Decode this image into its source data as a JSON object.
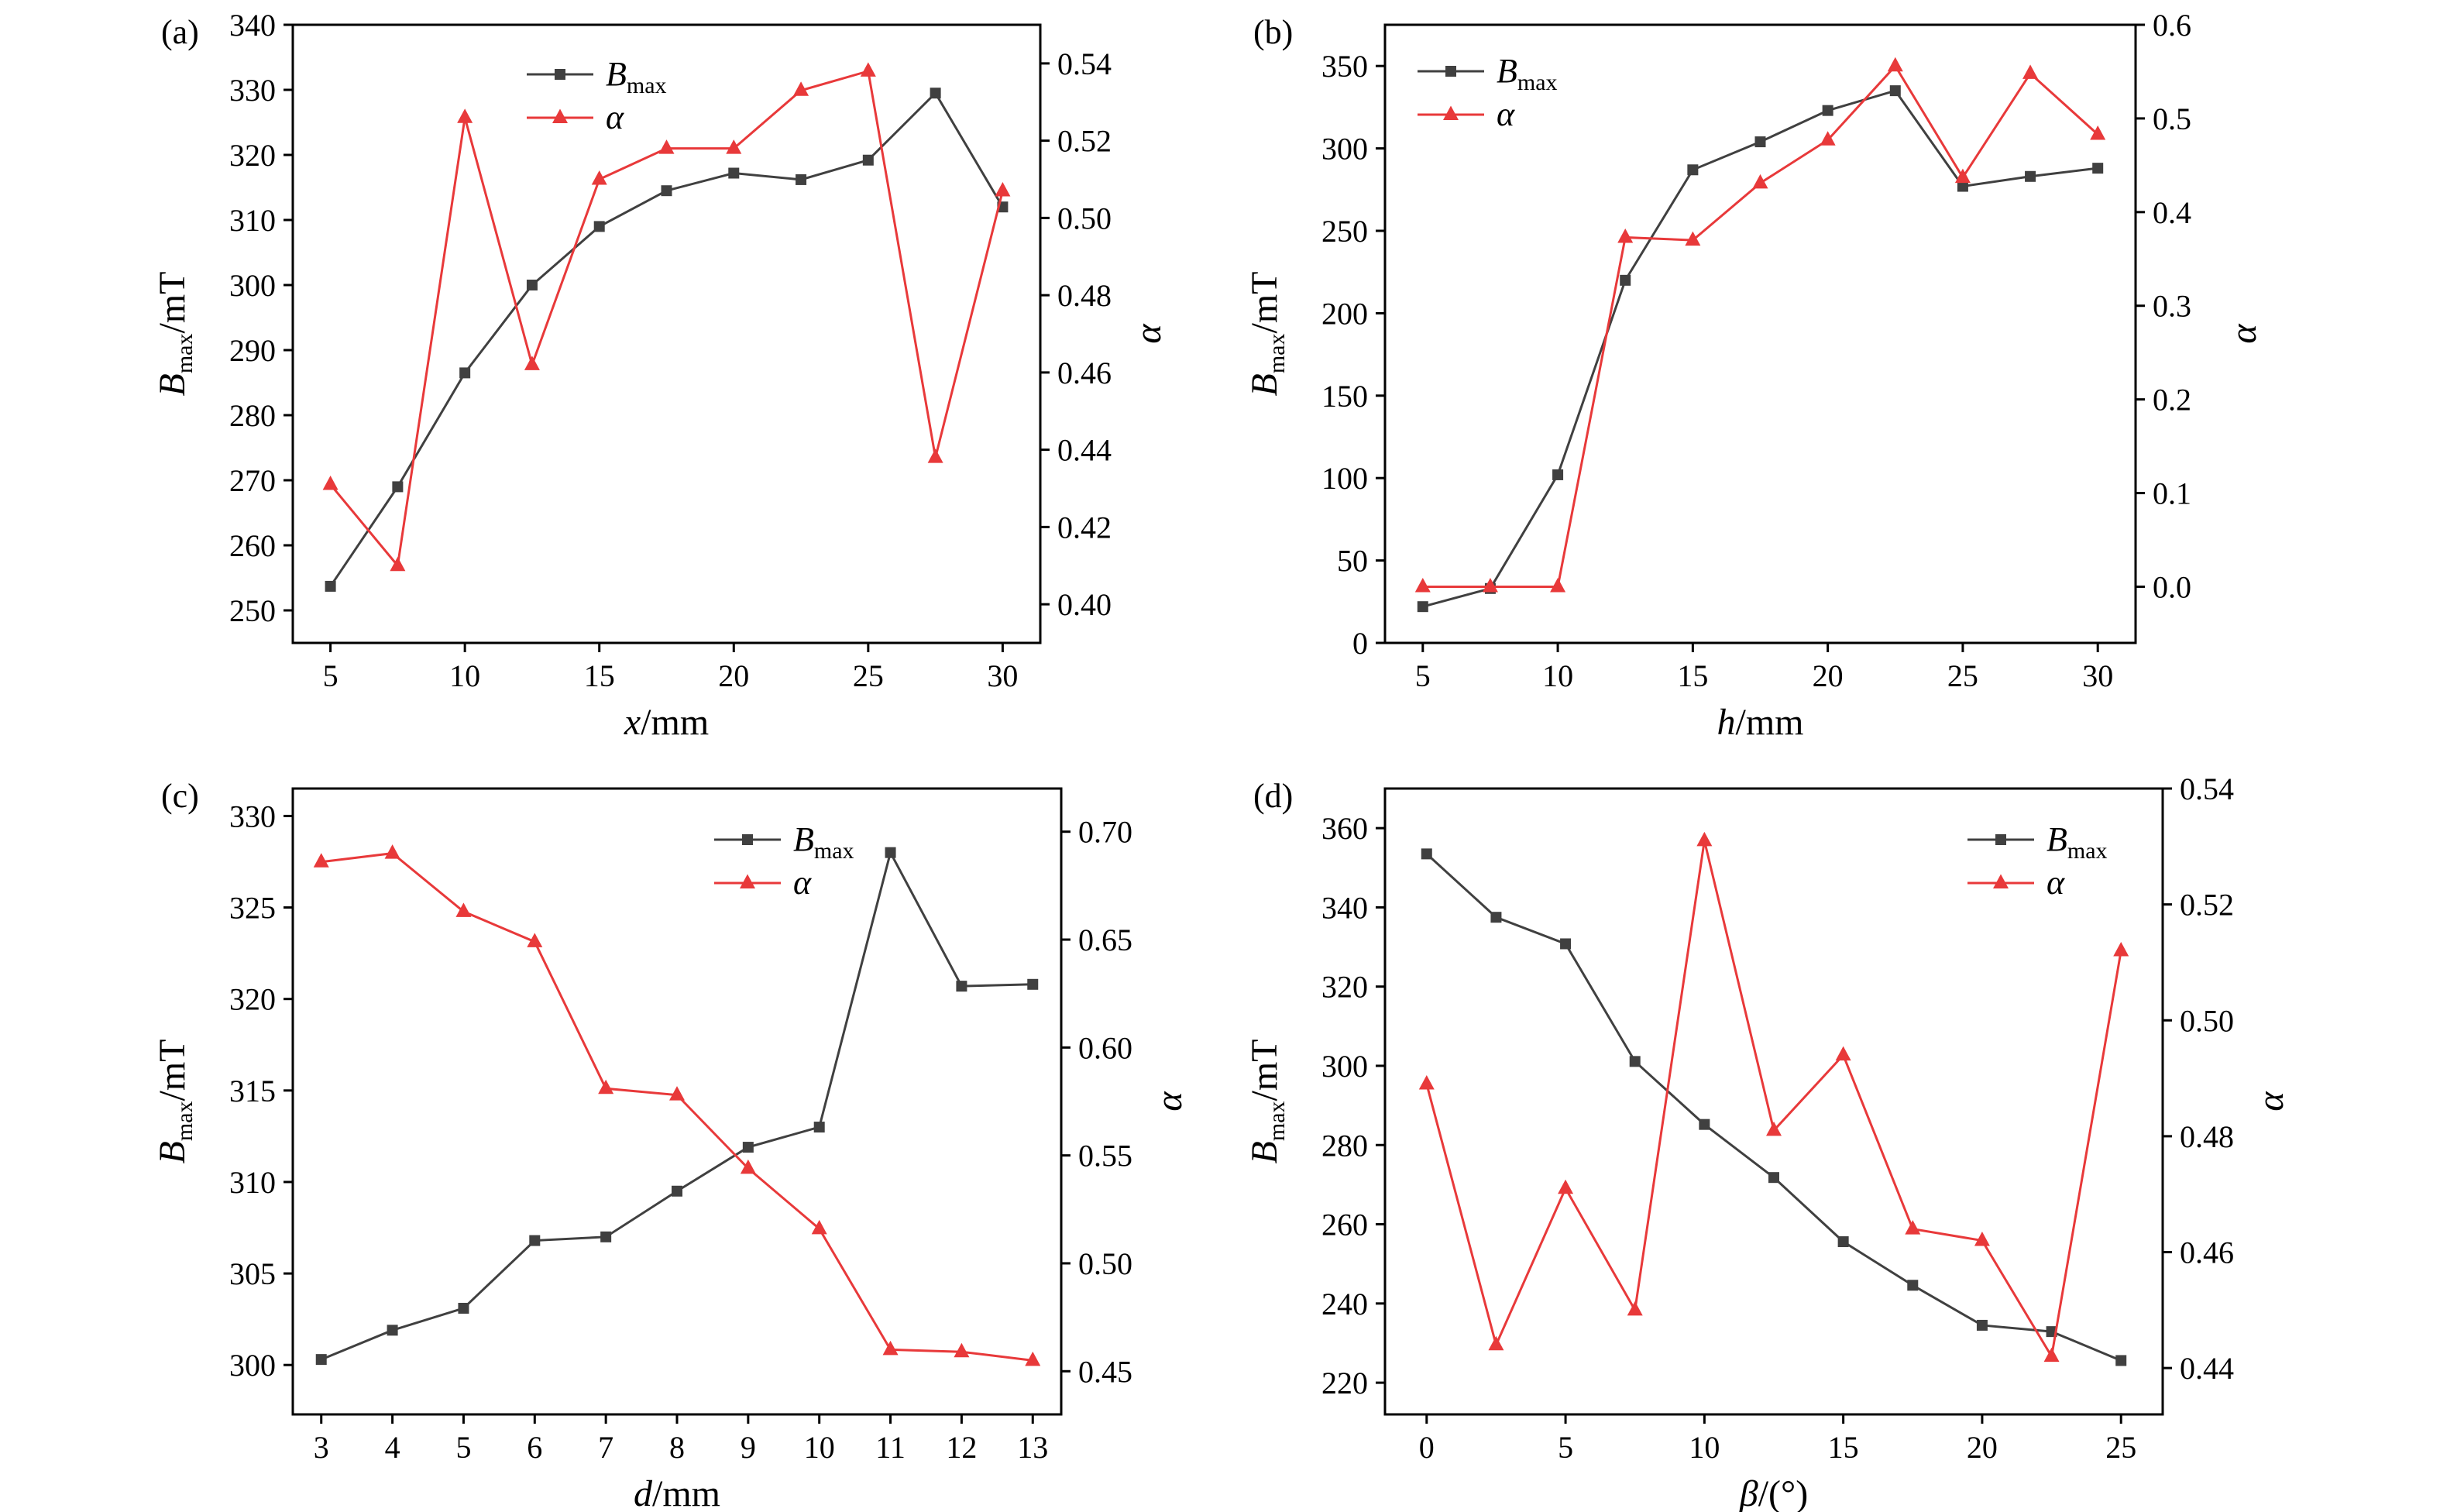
{
  "colors": {
    "bmax": "#404040",
    "alpha": "#e8393a",
    "axis": "#000000"
  },
  "chart_data": [
    {
      "type": "line",
      "panel_label": "(a)",
      "xlabel": {
        "var": "x",
        "unit": "/mm"
      },
      "ylabel_left": {
        "var": "B",
        "sub": "max",
        "unit": "/mT"
      },
      "ylabel_right": {
        "var": "α"
      },
      "xlim": [
        3.6,
        31.4
      ],
      "ylim_left": [
        245,
        340
      ],
      "ylim_right": [
        0.39,
        0.55
      ],
      "xticks": [
        5,
        10,
        15,
        20,
        25,
        30
      ],
      "yticks_left": [
        250,
        260,
        270,
        280,
        290,
        300,
        310,
        320,
        330,
        340
      ],
      "yticks_right": [
        0.4,
        0.42,
        0.44,
        0.46,
        0.48,
        0.5,
        0.52,
        0.54
      ],
      "right_decimals": 2,
      "legend": {
        "position": "top-center",
        "entries": [
          {
            "var": "B",
            "sub": "max"
          },
          {
            "var": "α"
          }
        ]
      },
      "x": [
        5,
        7.5,
        10,
        12.5,
        15,
        17.5,
        20,
        22.5,
        25,
        27.5,
        30
      ],
      "series": [
        {
          "name": "Bmax",
          "axis": "left",
          "marker": "square",
          "values": [
            253.7,
            269,
            286.5,
            300,
            309,
            314.5,
            317.2,
            316.2,
            319.2,
            329.5,
            312
          ]
        },
        {
          "name": "α",
          "axis": "right",
          "marker": "triangle",
          "values": [
            0.431,
            0.41,
            0.526,
            0.462,
            0.51,
            0.518,
            0.518,
            0.533,
            0.538,
            0.438,
            0.507
          ]
        }
      ]
    },
    {
      "type": "line",
      "panel_label": "(b)",
      "xlabel": {
        "var": "h",
        "unit": "/mm"
      },
      "ylabel_left": {
        "var": "B",
        "sub": "max",
        "unit": "/mT"
      },
      "ylabel_right": {
        "var": "α"
      },
      "xlim": [
        3.6,
        31.4
      ],
      "ylim_left": [
        0,
        375
      ],
      "ylim_right": [
        -0.06,
        0.6
      ],
      "xticks": [
        5,
        10,
        15,
        20,
        25,
        30
      ],
      "yticks_left": [
        0,
        50,
        100,
        150,
        200,
        250,
        300,
        350
      ],
      "yticks_right": [
        0,
        0.1,
        0.2,
        0.3,
        0.4,
        0.5,
        0.6
      ],
      "right_decimals": 1,
      "legend": {
        "position": "top-left",
        "entries": [
          {
            "var": "B",
            "sub": "max"
          },
          {
            "var": "α"
          }
        ]
      },
      "x": [
        5,
        7.5,
        10,
        12.5,
        15,
        17.5,
        20,
        22.5,
        25,
        27.5,
        30
      ],
      "series": [
        {
          "name": "Bmax",
          "axis": "left",
          "marker": "square",
          "values": [
            22,
            33,
            102,
            220,
            287,
            304,
            323,
            335,
            277,
            283,
            288
          ]
        },
        {
          "name": "α",
          "axis": "right",
          "marker": "triangle",
          "values": [
            0,
            0,
            0,
            0.373,
            0.37,
            0.431,
            0.477,
            0.556,
            0.437,
            0.548,
            0.483
          ]
        }
      ]
    },
    {
      "type": "line",
      "panel_label": "(c)",
      "xlabel": {
        "var": "d",
        "unit": "/mm"
      },
      "ylabel_left": {
        "var": "B",
        "sub": "max",
        "unit": "/mT"
      },
      "ylabel_right": {
        "var": "α"
      },
      "xlim": [
        2.6,
        13.4
      ],
      "ylim_left": [
        297.3,
        331.5
      ],
      "ylim_right": [
        0.43,
        0.72
      ],
      "xticks": [
        3,
        4,
        5,
        6,
        7,
        8,
        9,
        10,
        11,
        12,
        13
      ],
      "yticks_left": [
        300,
        305,
        310,
        315,
        320,
        325,
        330
      ],
      "yticks_right": [
        0.45,
        0.5,
        0.55,
        0.6,
        0.65,
        0.7
      ],
      "right_decimals": 2,
      "legend": {
        "position": "top-right",
        "entries": [
          {
            "var": "B",
            "sub": "max"
          },
          {
            "var": "α"
          }
        ]
      },
      "x": [
        3,
        4,
        5,
        6,
        7,
        8,
        9,
        10,
        11,
        12,
        13
      ],
      "series": [
        {
          "name": "Bmax",
          "axis": "left",
          "marker": "square",
          "values": [
            300.3,
            301.9,
            303.1,
            306.8,
            307,
            309.5,
            311.9,
            313,
            328,
            320.7,
            320.8
          ]
        },
        {
          "name": "α",
          "axis": "right",
          "marker": "triangle",
          "values": [
            0.686,
            0.69,
            0.663,
            0.649,
            0.581,
            0.578,
            0.544,
            0.516,
            0.46,
            0.459,
            0.455
          ]
        }
      ]
    },
    {
      "type": "line",
      "panel_label": "(d)",
      "xlabel": {
        "var": "β",
        "unit": "/(°)"
      },
      "ylabel_left": {
        "var": "B",
        "sub": "max",
        "unit": "/mT"
      },
      "ylabel_right": {
        "var": "α"
      },
      "xlim": [
        -1.5,
        26.5
      ],
      "ylim_left": [
        212,
        370
      ],
      "ylim_right": [
        0.432,
        0.54
      ],
      "xticks": [
        0,
        5,
        10,
        15,
        20,
        25
      ],
      "yticks_left": [
        220,
        240,
        260,
        280,
        300,
        320,
        340,
        360
      ],
      "yticks_right": [
        0.44,
        0.46,
        0.48,
        0.5,
        0.52,
        0.54
      ],
      "right_decimals": 2,
      "legend": {
        "position": "top-right",
        "entries": [
          {
            "var": "B",
            "sub": "max"
          },
          {
            "var": "α"
          }
        ]
      },
      "x": [
        0,
        2.5,
        5,
        7.5,
        10,
        12.5,
        15,
        17.5,
        20,
        22.5,
        25
      ],
      "series": [
        {
          "name": "Bmax",
          "axis": "left",
          "marker": "square",
          "values": [
            353.5,
            337.5,
            330.8,
            301.1,
            285.2,
            271.8,
            255.6,
            244.6,
            234.5,
            232.9,
            225.6
          ]
        },
        {
          "name": "α",
          "axis": "right",
          "marker": "triangle",
          "values": [
            0.489,
            0.444,
            0.471,
            0.45,
            0.531,
            0.481,
            0.494,
            0.464,
            0.462,
            0.442,
            0.512
          ]
        }
      ]
    }
  ]
}
